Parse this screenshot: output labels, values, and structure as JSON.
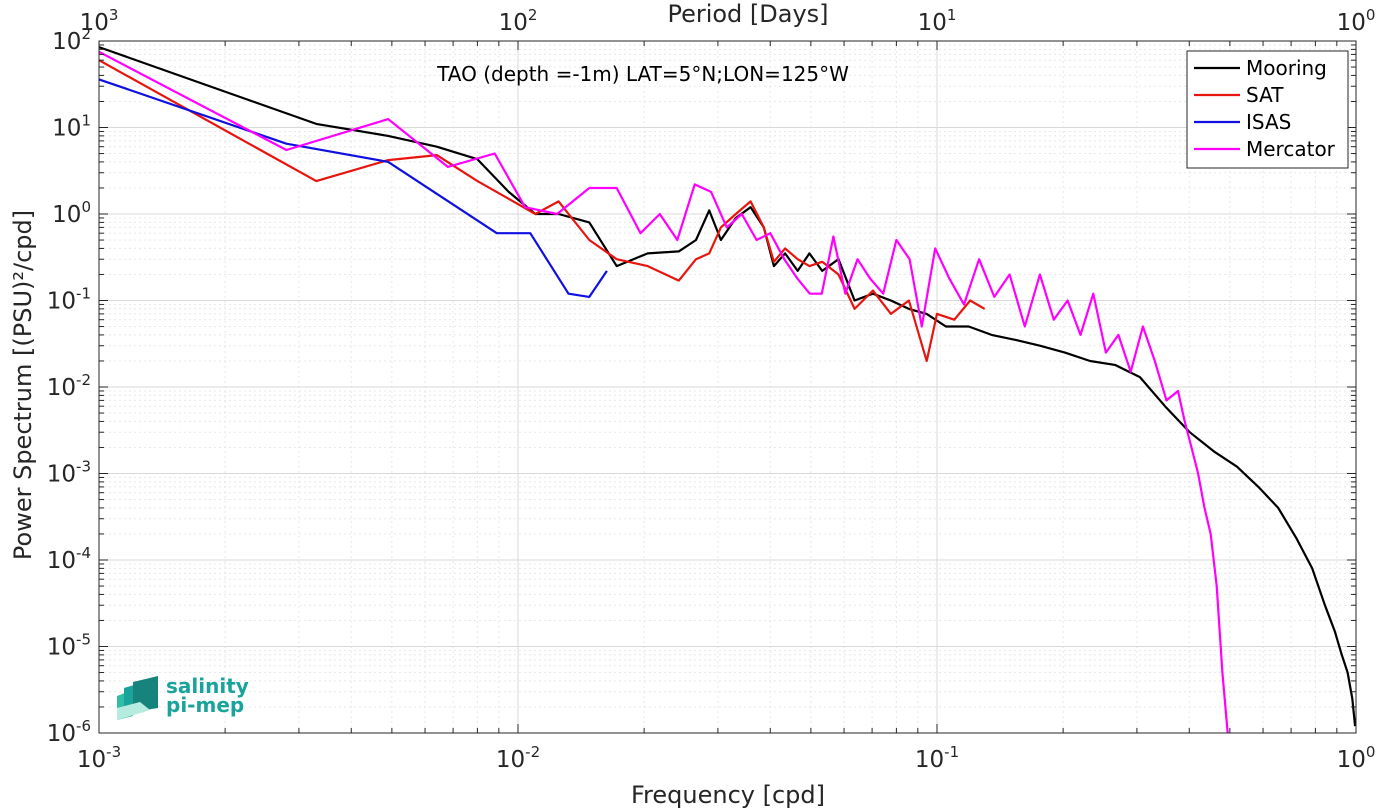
{
  "chart_data": {
    "type": "line",
    "title": "TAO (depth =-1m) LAT=5°N;LON=125°W",
    "xlabel": "Frequency [cpd]",
    "ylabel": "Power Spectrum [(PSU)²/cpd]",
    "x2label": "Period [Days]",
    "xscale": "log",
    "yscale": "log",
    "xlim": [
      0.001,
      1
    ],
    "ylim": [
      1e-06,
      100
    ],
    "x_ticks": [
      {
        "base": "10",
        "exp": "-3",
        "value": 0.001
      },
      {
        "base": "10",
        "exp": "-2",
        "value": 0.01
      },
      {
        "base": "10",
        "exp": "-1",
        "value": 0.1
      },
      {
        "base": "10",
        "exp": "0",
        "value": 1
      }
    ],
    "y_ticks": [
      {
        "base": "10",
        "exp": "-6",
        "value": 1e-06
      },
      {
        "base": "10",
        "exp": "-5",
        "value": 1e-05
      },
      {
        "base": "10",
        "exp": "-4",
        "value": 0.0001
      },
      {
        "base": "10",
        "exp": "-3",
        "value": 0.001
      },
      {
        "base": "10",
        "exp": "-2",
        "value": 0.01
      },
      {
        "base": "10",
        "exp": "-1",
        "value": 0.1
      },
      {
        "base": "10",
        "exp": "0",
        "value": 1
      },
      {
        "base": "10",
        "exp": "1",
        "value": 10
      },
      {
        "base": "10",
        "exp": "2",
        "value": 100
      }
    ],
    "x2_ticks": [
      {
        "base": "10",
        "exp": "3",
        "value": 0.001
      },
      {
        "base": "10",
        "exp": "2",
        "value": 0.01
      },
      {
        "base": "10",
        "exp": "1",
        "value": 0.1
      },
      {
        "base": "10",
        "exp": "0",
        "value": 1
      }
    ],
    "grid": true,
    "legend_position": "top-right",
    "series": [
      {
        "name": "Mooring",
        "color": "#000000",
        "x": [
          0.001,
          0.0033,
          0.0049,
          0.0064,
          0.008,
          0.0095,
          0.011,
          0.0125,
          0.0148,
          0.0172,
          0.0204,
          0.0242,
          0.0266,
          0.0286,
          0.0305,
          0.0331,
          0.0359,
          0.0386,
          0.0408,
          0.0434,
          0.0465,
          0.0496,
          0.0532,
          0.0582,
          0.0636,
          0.0703,
          0.0776,
          0.0857,
          0.0945,
          0.105,
          0.119,
          0.135,
          0.154,
          0.176,
          0.202,
          0.232,
          0.266,
          0.305,
          0.35,
          0.401,
          0.458,
          0.52,
          0.585,
          0.652,
          0.72,
          0.786,
          0.843,
          0.89,
          0.925,
          0.955,
          0.98,
          0.995
        ],
        "y": [
          85,
          11,
          8,
          6,
          4.3,
          1.8,
          1.0,
          1.0,
          0.8,
          0.25,
          0.35,
          0.37,
          0.5,
          1.1,
          0.5,
          0.9,
          1.2,
          0.7,
          0.25,
          0.35,
          0.22,
          0.35,
          0.22,
          0.3,
          0.1,
          0.12,
          0.1,
          0.08,
          0.07,
          0.05,
          0.05,
          0.04,
          0.035,
          0.03,
          0.025,
          0.02,
          0.018,
          0.013,
          0.006,
          0.003,
          0.0018,
          0.0012,
          0.0007,
          0.0004,
          0.00018,
          8e-05,
          3e-05,
          1.5e-05,
          8e-06,
          5e-06,
          2.5e-06,
          1.2e-06
        ]
      },
      {
        "name": "SAT",
        "color": "#e8140e",
        "x": [
          0.001,
          0.0033,
          0.0049,
          0.0064,
          0.008,
          0.0095,
          0.011,
          0.0125,
          0.0148,
          0.0172,
          0.0204,
          0.0242,
          0.0266,
          0.0286,
          0.0305,
          0.0331,
          0.0359,
          0.0386,
          0.0408,
          0.0434,
          0.0465,
          0.0496,
          0.0532,
          0.0582,
          0.0636,
          0.0703,
          0.0776,
          0.0857,
          0.0945,
          0.1,
          0.11,
          0.12,
          0.13
        ],
        "y": [
          60,
          2.4,
          4.2,
          4.8,
          2.4,
          1.5,
          1.0,
          1.4,
          0.5,
          0.3,
          0.25,
          0.17,
          0.3,
          0.35,
          0.7,
          1.0,
          1.4,
          0.7,
          0.28,
          0.4,
          0.3,
          0.25,
          0.28,
          0.2,
          0.08,
          0.13,
          0.07,
          0.1,
          0.02,
          0.07,
          0.06,
          0.1,
          0.08
        ]
      },
      {
        "name": "ISAS",
        "color": "#1010e0",
        "x": [
          0.001,
          0.0028,
          0.0049,
          0.0089,
          0.0107,
          0.0132,
          0.0148,
          0.0163
        ],
        "y": [
          36,
          6.5,
          4.0,
          0.6,
          0.6,
          0.12,
          0.11,
          0.22
        ]
      },
      {
        "name": "Mercator",
        "color": "#ff00ff",
        "x": [
          0.001,
          0.0028,
          0.0049,
          0.0068,
          0.0088,
          0.0104,
          0.0124,
          0.0148,
          0.0172,
          0.0196,
          0.0218,
          0.024,
          0.0264,
          0.0289,
          0.0315,
          0.0342,
          0.0371,
          0.04,
          0.0432,
          0.0464,
          0.0497,
          0.0531,
          0.0566,
          0.0604,
          0.0646,
          0.0692,
          0.0744,
          0.08,
          0.086,
          0.092,
          0.099,
          0.107,
          0.116,
          0.126,
          0.137,
          0.149,
          0.162,
          0.176,
          0.19,
          0.205,
          0.22,
          0.236,
          0.253,
          0.271,
          0.29,
          0.31,
          0.331,
          0.353,
          0.376,
          0.39,
          0.405,
          0.42,
          0.435,
          0.45,
          0.465,
          0.48,
          0.494
        ],
        "y": [
          75,
          5.5,
          12.5,
          3.5,
          5.0,
          1.2,
          1.0,
          2.0,
          2.0,
          0.6,
          1.0,
          0.5,
          2.2,
          1.8,
          0.7,
          1.0,
          0.5,
          0.6,
          0.3,
          0.18,
          0.12,
          0.12,
          0.55,
          0.12,
          0.3,
          0.18,
          0.12,
          0.5,
          0.3,
          0.05,
          0.4,
          0.18,
          0.09,
          0.3,
          0.11,
          0.2,
          0.05,
          0.2,
          0.06,
          0.1,
          0.04,
          0.12,
          0.025,
          0.04,
          0.015,
          0.05,
          0.02,
          0.007,
          0.009,
          0.004,
          0.002,
          0.001,
          0.0004,
          0.0002,
          5e-05,
          5e-06,
          1e-06
        ]
      }
    ]
  },
  "logo": {
    "line1": "salinity",
    "line2": "pi-mep"
  }
}
